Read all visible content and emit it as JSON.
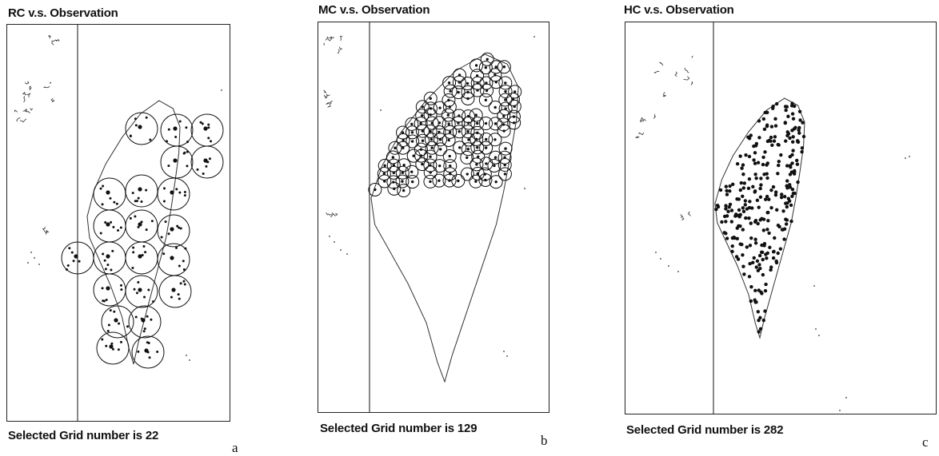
{
  "panels": [
    {
      "id": "a",
      "title": "RC v.s. Observation",
      "caption": "Selected Grid number is  22",
      "letter": "a",
      "grid_count": 22
    },
    {
      "id": "b",
      "title": "MC v.s. Observation",
      "caption": "Selected Grid number is 129",
      "letter": "b",
      "grid_count": 129
    },
    {
      "id": "c",
      "title": "HC v.s. Observation",
      "caption": "Selected Grid number is 282",
      "letter": "c",
      "grid_count": 282
    }
  ],
  "colors": {
    "ink": "#111111",
    "coast": "#333333"
  }
}
